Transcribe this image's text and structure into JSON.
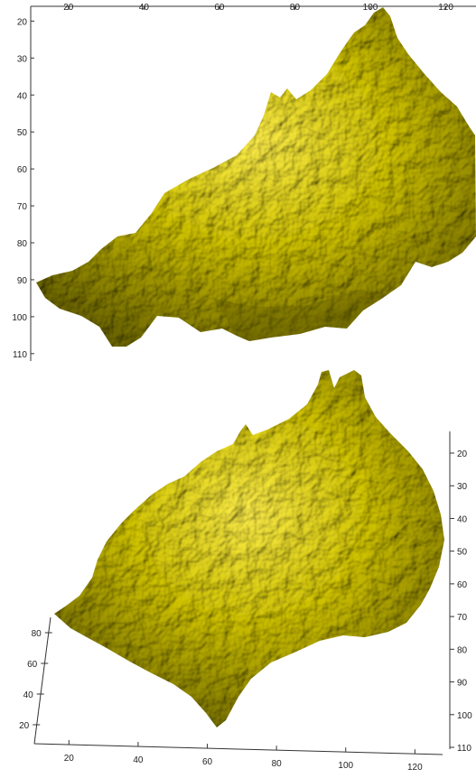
{
  "chart_data": [
    {
      "type": "surface",
      "view": "top",
      "color": "#c8c000",
      "x_axis": {
        "ticks": [
          "20",
          "40",
          "60",
          "80",
          "100",
          "120"
        ],
        "range": [
          10,
          128
        ]
      },
      "y_axis": {
        "ticks": [
          "20",
          "30",
          "40",
          "50",
          "60",
          "70",
          "80",
          "90",
          "100",
          "110"
        ],
        "range": [
          16,
          112
        ]
      }
    },
    {
      "type": "surface",
      "view": "oblique",
      "color": "#c8c000",
      "x_axis": {
        "ticks": [
          "20",
          "40",
          "60",
          "80",
          "100",
          "120"
        ],
        "range": [
          10,
          128
        ]
      },
      "y_axis": {
        "ticks": [
          "20",
          "30",
          "40",
          "50",
          "60",
          "70",
          "80",
          "90",
          "100",
          "110"
        ],
        "range": [
          20,
          110
        ]
      },
      "z_axis": {
        "ticks": [
          "20",
          "40",
          "60",
          "80"
        ],
        "range": [
          10,
          90
        ]
      }
    }
  ]
}
